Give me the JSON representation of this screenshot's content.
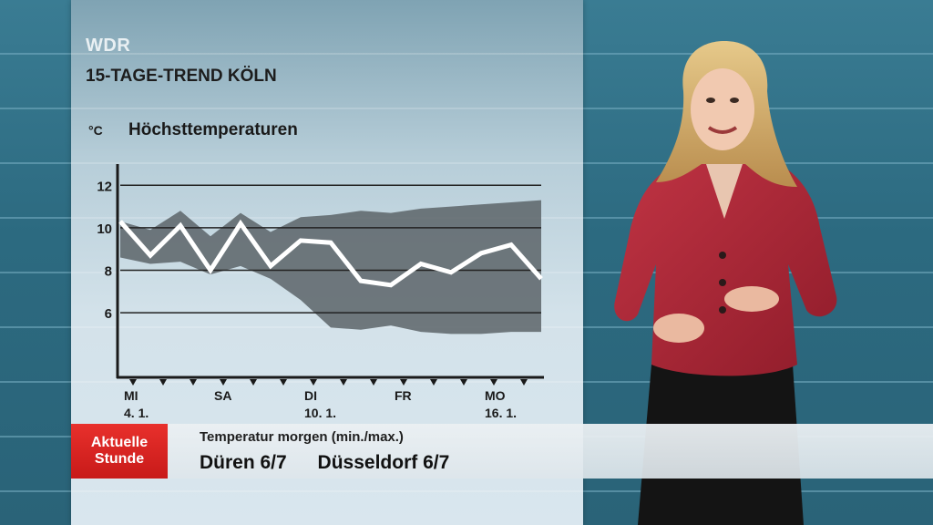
{
  "broadcast": {
    "channel": "WDR",
    "title": "15-TAGE-TREND KÖLN",
    "logo_line1": "Aktuelle",
    "logo_line2": "Stunde"
  },
  "ticker": {
    "subtitle": "Temperatur morgen (min./max.)",
    "items": [
      "Düren 6/7",
      "Düsseldorf 6/7"
    ]
  },
  "chart_data": {
    "type": "line",
    "title": "Höchsttemperaturen",
    "ylabel": "°C",
    "ylim": [
      3,
      13
    ],
    "yticks": [
      6,
      8,
      10,
      12
    ],
    "xticklabels": [
      {
        "index": 0,
        "line1": "MI",
        "line2": "4. 1."
      },
      {
        "index": 3,
        "line1": "SA",
        "line2": ""
      },
      {
        "index": 6,
        "line1": "DI",
        "line2": "10. 1."
      },
      {
        "index": 9,
        "line1": "FR",
        "line2": ""
      },
      {
        "index": 12,
        "line1": "MO",
        "line2": "16. 1."
      }
    ],
    "series": [
      {
        "values": [
          10.3,
          8.7,
          10.1,
          8.0,
          10.2,
          8.2,
          9.4,
          9.3,
          7.5,
          7.3,
          8.3,
          7.9,
          8.8,
          9.2,
          7.6
        ]
      }
    ],
    "band": {
      "upper": [
        10.3,
        9.9,
        10.8,
        9.6,
        10.7,
        9.8,
        10.5,
        10.6,
        10.8,
        10.7,
        10.9,
        11.0,
        11.1,
        11.2,
        11.3
      ],
      "lower": [
        8.6,
        8.3,
        8.4,
        7.8,
        8.2,
        7.6,
        6.6,
        5.3,
        5.2,
        5.4,
        5.1,
        5.0,
        5.0,
        5.1,
        5.1
      ]
    },
    "colors": {
      "line": "#ffffff",
      "band": "#5c6468",
      "grid": "#222222"
    }
  }
}
